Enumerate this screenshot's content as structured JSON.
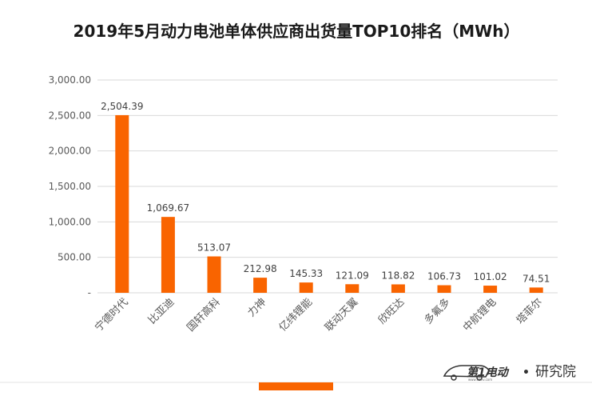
{
  "chart_data": {
    "type": "bar",
    "title": "2019年5月动力电池单体供应商出货量TOP10排名（MWh）",
    "categories": [
      "宁德时代",
      "比亚迪",
      "国轩高科",
      "力神",
      "亿纬锂能",
      "联动天翼",
      "欣旺达",
      "多氟多",
      "中航锂电",
      "塔菲尔"
    ],
    "values": [
      2504.39,
      1069.67,
      513.07,
      212.98,
      145.33,
      121.09,
      118.82,
      106.73,
      101.02,
      74.51
    ],
    "value_labels": [
      "2,504.39",
      "1,069.67",
      "513.07",
      "212.98",
      "145.33",
      "121.09",
      "118.82",
      "106.73",
      "101.02",
      "74.51"
    ],
    "ylim": [
      0,
      3000
    ],
    "yticks": [
      0,
      500,
      1000,
      1500,
      2000,
      2500,
      3000
    ],
    "ytick_labels": [
      "-",
      "500.00",
      "1,000.00",
      "1,500.00",
      "2,000.00",
      "2,500.00",
      "3,000.00"
    ],
    "grid": true,
    "bar_color": "#f96400"
  },
  "brand": {
    "name": "第1电动",
    "suffix": "研究院",
    "separator": "•",
    "logo_small_text": "www.d1ev.com"
  }
}
